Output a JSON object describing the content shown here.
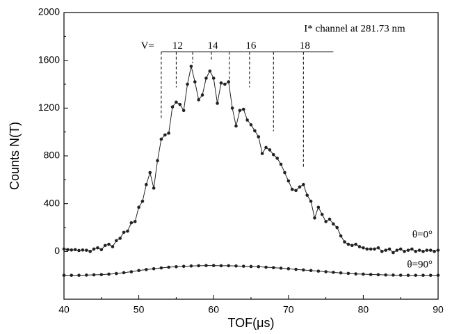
{
  "chart_data": {
    "type": "line",
    "title": "I* channel at 281.73 nm",
    "x_label": "TOF(μs)",
    "y_label": "Counts  N(T)",
    "xlim": [
      40,
      90
    ],
    "xticks": [
      40,
      50,
      60,
      70,
      80,
      90
    ],
    "ylim": [
      -400,
      2000
    ],
    "yticks": [
      0,
      400,
      800,
      1200,
      1600,
      2000
    ],
    "series": [
      {
        "name": "θ=0°",
        "color": "#222222",
        "x": [
          40,
          40.5,
          41,
          41.5,
          42,
          42.5,
          43,
          43.5,
          44,
          44.5,
          45,
          45.5,
          46,
          46.5,
          47,
          47.5,
          48,
          48.5,
          49,
          49.5,
          50,
          50.5,
          51,
          51.5,
          52,
          52.5,
          53,
          53.5,
          54,
          54.5,
          55,
          55.5,
          56,
          56.5,
          57,
          57.5,
          58,
          58.5,
          59,
          59.5,
          60,
          60.5,
          61,
          61.5,
          62,
          62.5,
          63,
          63.5,
          64,
          64.5,
          65,
          65.5,
          66,
          66.5,
          67,
          67.5,
          68,
          68.5,
          69,
          69.5,
          70,
          70.5,
          71,
          71.5,
          72,
          72.5,
          73,
          73.5,
          74,
          74.5,
          75,
          75.5,
          76,
          76.5,
          77,
          77.5,
          78,
          78.5,
          79,
          79.5,
          80,
          80.5,
          81,
          81.5,
          82,
          82.5,
          83,
          83.5,
          84,
          84.5,
          85,
          85.5,
          86,
          86.5,
          87,
          87.5,
          88,
          88.5,
          89,
          89.5,
          90
        ],
        "values": [
          20,
          15,
          12,
          15,
          8,
          12,
          10,
          0,
          20,
          30,
          15,
          50,
          60,
          40,
          90,
          110,
          160,
          170,
          240,
          250,
          370,
          420,
          560,
          660,
          530,
          760,
          940,
          975,
          990,
          1210,
          1250,
          1230,
          1180,
          1400,
          1550,
          1420,
          1270,
          1310,
          1450,
          1510,
          1450,
          1240,
          1410,
          1400,
          1420,
          1200,
          1050,
          1180,
          1190,
          1100,
          1060,
          1010,
          960,
          820,
          870,
          850,
          810,
          780,
          730,
          660,
          590,
          520,
          510,
          540,
          560,
          470,
          420,
          280,
          370,
          310,
          250,
          270,
          230,
          200,
          130,
          80,
          60,
          50,
          60,
          40,
          30,
          20,
          20,
          20,
          30,
          0,
          10,
          20,
          -10,
          10,
          20,
          0,
          10,
          20,
          0,
          10,
          0,
          10,
          10,
          0,
          10
        ]
      },
      {
        "name": "θ=90°",
        "color": "#222222",
        "x": [
          40,
          41,
          42,
          43,
          44,
          45,
          46,
          47,
          48,
          49,
          50,
          51,
          52,
          53,
          54,
          55,
          56,
          57,
          58,
          59,
          60,
          61,
          62,
          63,
          64,
          65,
          66,
          67,
          68,
          69,
          70,
          71,
          72,
          73,
          74,
          75,
          76,
          77,
          78,
          79,
          80,
          81,
          82,
          83,
          84,
          85,
          86,
          87,
          88,
          89,
          90
        ],
        "values": [
          -200,
          -200,
          -200,
          -198,
          -196,
          -194,
          -190,
          -185,
          -178,
          -170,
          -160,
          -152,
          -145,
          -138,
          -132,
          -128,
          -125,
          -122,
          -120,
          -118,
          -118,
          -120,
          -120,
          -122,
          -124,
          -126,
          -128,
          -132,
          -136,
          -140,
          -145,
          -150,
          -155,
          -160,
          -165,
          -170,
          -175,
          -180,
          -184,
          -188,
          -190,
          -193,
          -195,
          -197,
          -198,
          -199,
          -200,
          -200,
          -200,
          -200,
          -200
        ]
      }
    ],
    "scale": {
      "prefix": "V=",
      "labels": [
        12,
        14,
        16,
        18
      ],
      "y": 1670,
      "xlim": [
        53,
        76
      ],
      "lines_x": [
        53,
        55,
        57.2,
        59.7,
        62.1,
        64.8,
        68,
        72
      ],
      "lines_bottom": [
        1112,
        1374,
        1578,
        1590,
        1432,
        1374,
        1007,
        705
      ]
    }
  }
}
